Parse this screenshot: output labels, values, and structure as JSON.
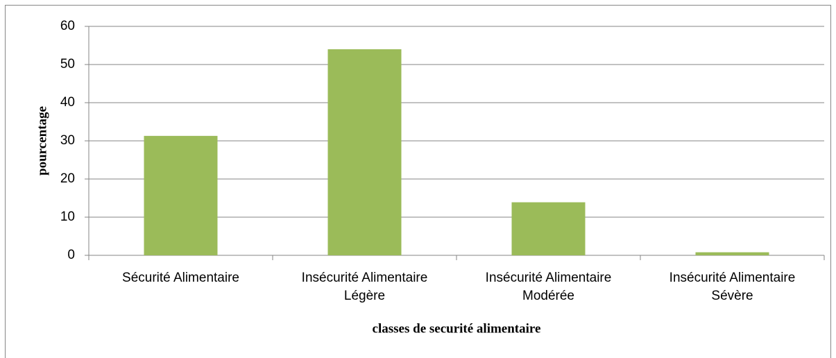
{
  "chart_data": {
    "type": "bar",
    "categories": [
      "Sécurité Alimentaire",
      "Insécurité Alimentaire Légère",
      "Insécurité Alimentaire Modérée",
      "Insécurité Alimentaire Sévère"
    ],
    "values": [
      31.3,
      54,
      13.9,
      0.8
    ],
    "color": "#9bbb59",
    "ylim": [
      0,
      60
    ],
    "yticks": [
      0,
      10,
      20,
      30,
      40,
      50,
      60
    ],
    "grid": true,
    "x_label": "classes de securité alimentaire",
    "y_label": "pourcentage"
  }
}
